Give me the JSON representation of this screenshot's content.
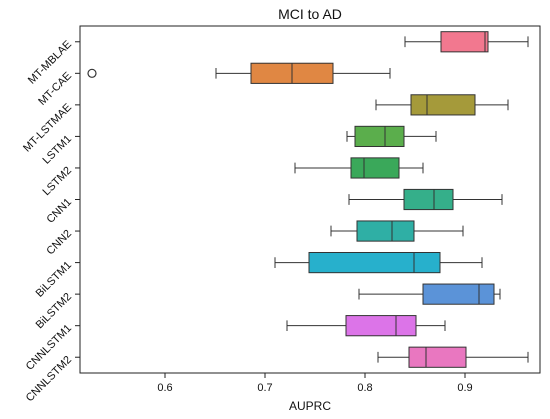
{
  "chart_data": {
    "type": "box",
    "title": "MCI to AD",
    "xlabel": "AUPRC",
    "ylabel": "",
    "xlim": [
      0.515,
      0.975
    ],
    "xticks": [
      0.6,
      0.7,
      0.8,
      0.9
    ],
    "grid": false,
    "legend": "none",
    "categories": [
      "MT-MBLAE",
      "MT-CAE",
      "MT-LSTMAE",
      "LSTM1",
      "LSTM2",
      "CNN1",
      "CNN2",
      "BiLSTM1",
      "BiLSTM2",
      "CNNLSTM1",
      "CNNLSTM2"
    ],
    "boxes": [
      {
        "category": "MT-MBLAE",
        "whisker_low": 0.84,
        "q1": 0.876,
        "median": 0.92,
        "q3": 0.923,
        "whisker_high": 0.963,
        "outliers": [],
        "color": "#F2788F"
      },
      {
        "category": "MT-CAE",
        "whisker_low": 0.651,
        "q1": 0.686,
        "median": 0.727,
        "q3": 0.768,
        "whisker_high": 0.825,
        "outliers": [
          0.527
        ],
        "color": "#E08743"
      },
      {
        "category": "MT-LSTMAE",
        "whisker_low": 0.811,
        "q1": 0.846,
        "median": 0.862,
        "q3": 0.91,
        "whisker_high": 0.943,
        "outliers": [],
        "color": "#A59A3A"
      },
      {
        "category": "LSTM1",
        "whisker_low": 0.782,
        "q1": 0.79,
        "median": 0.82,
        "q3": 0.839,
        "whisker_high": 0.871,
        "outliers": [],
        "color": "#5BAE4C"
      },
      {
        "category": "LSTM2",
        "whisker_low": 0.73,
        "q1": 0.786,
        "median": 0.799,
        "q3": 0.834,
        "whisker_high": 0.858,
        "outliers": [],
        "color": "#3AA85A"
      },
      {
        "category": "CNN1",
        "whisker_low": 0.784,
        "q1": 0.839,
        "median": 0.869,
        "q3": 0.888,
        "whisker_high": 0.937,
        "outliers": [],
        "color": "#35AF8A"
      },
      {
        "category": "CNN2",
        "whisker_low": 0.766,
        "q1": 0.792,
        "median": 0.827,
        "q3": 0.849,
        "whisker_high": 0.898,
        "outliers": [],
        "color": "#2FAFA5"
      },
      {
        "category": "BiLSTM1",
        "whisker_low": 0.71,
        "q1": 0.744,
        "median": 0.849,
        "q3": 0.875,
        "whisker_high": 0.917,
        "outliers": [],
        "color": "#27B0CC"
      },
      {
        "category": "BiLSTM2",
        "whisker_low": 0.794,
        "q1": 0.858,
        "median": 0.914,
        "q3": 0.929,
        "whisker_high": 0.935,
        "outliers": [],
        "color": "#5B93D8"
      },
      {
        "category": "CNNLSTM1",
        "whisker_low": 0.722,
        "q1": 0.781,
        "median": 0.831,
        "q3": 0.851,
        "whisker_high": 0.88,
        "outliers": [],
        "color": "#DC74E8"
      },
      {
        "category": "CNNLSTM2",
        "whisker_low": 0.813,
        "q1": 0.844,
        "median": 0.861,
        "q3": 0.901,
        "whisker_high": 0.963,
        "outliers": [],
        "color": "#E977C0"
      }
    ]
  }
}
